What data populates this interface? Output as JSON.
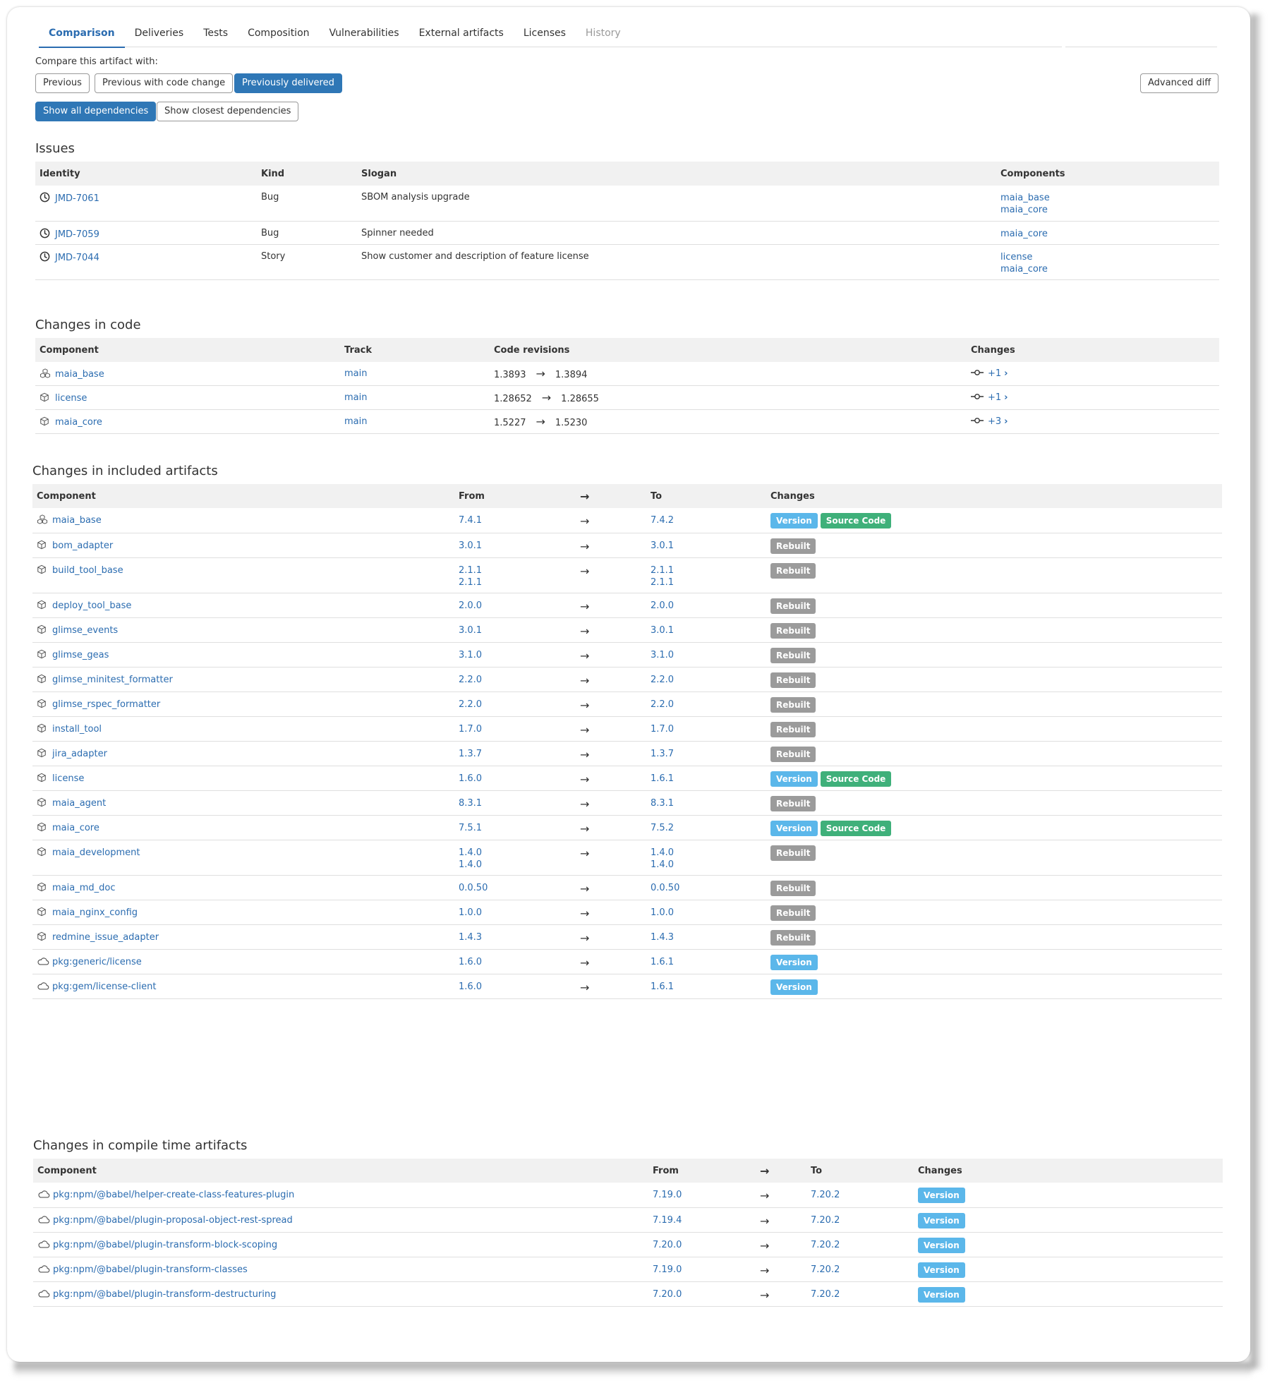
{
  "tabs": [
    {
      "label": "Comparison",
      "active": true
    },
    {
      "label": "Deliveries"
    },
    {
      "label": "Tests"
    },
    {
      "label": "Composition"
    },
    {
      "label": "Vulnerabilities"
    },
    {
      "label": "External artifacts"
    },
    {
      "label": "Licenses"
    },
    {
      "label": "History",
      "disabled": true
    }
  ],
  "compare": {
    "label": "Compare this artifact with:",
    "previous": "Previous",
    "previous_code": "Previous with code change",
    "previously_delivered": "Previously delivered",
    "advanced_diff": "Advanced diff",
    "show_all": "Show all dependencies",
    "show_closest": "Show closest dependencies"
  },
  "issues": {
    "title": "Issues",
    "headers": {
      "identity": "Identity",
      "kind": "Kind",
      "slogan": "Slogan",
      "components": "Components"
    },
    "rows": [
      {
        "id": "JMD-7061",
        "kind": "Bug",
        "slogan": "SBOM analysis upgrade",
        "components": [
          "maia_base",
          "maia_core"
        ]
      },
      {
        "id": "JMD-7059",
        "kind": "Bug",
        "slogan": "Spinner needed",
        "components": [
          "maia_core"
        ]
      },
      {
        "id": "JMD-7044",
        "kind": "Story",
        "slogan": "Show customer and description of feature license",
        "components": [
          "license",
          "maia_core"
        ]
      }
    ]
  },
  "code": {
    "title": "Changes in code",
    "headers": {
      "component": "Component",
      "track": "Track",
      "revisions": "Code revisions",
      "changes": "Changes"
    },
    "rows": [
      {
        "component": "maia_base",
        "icon": "cubes-icon",
        "track": "main",
        "from": "1.3893",
        "to": "1.3894",
        "changes": "+1"
      },
      {
        "component": "license",
        "icon": "cube-icon",
        "track": "main",
        "from": "1.28652",
        "to": "1.28655",
        "changes": "+1"
      },
      {
        "component": "maia_core",
        "icon": "cube-icon",
        "track": "main",
        "from": "1.5227",
        "to": "1.5230",
        "changes": "+3"
      }
    ]
  },
  "included": {
    "title": "Changes in included artifacts",
    "headers": {
      "component": "Component",
      "from": "From",
      "to": "To",
      "changes": "Changes"
    },
    "rows": [
      {
        "component": "maia_base",
        "icon": "cubes-icon",
        "from": [
          "7.4.1"
        ],
        "to": [
          "7.4.2"
        ],
        "badges": [
          "Version",
          "Source Code"
        ]
      },
      {
        "component": "bom_adapter",
        "icon": "cube-icon",
        "from": [
          "3.0.1"
        ],
        "to": [
          "3.0.1"
        ],
        "badges": [
          "Rebuilt"
        ]
      },
      {
        "component": "build_tool_base",
        "icon": "cube-icon",
        "from": [
          "2.1.1",
          "2.1.1"
        ],
        "to": [
          "2.1.1",
          "2.1.1"
        ],
        "badges": [
          "Rebuilt"
        ]
      },
      {
        "component": "deploy_tool_base",
        "icon": "cube-icon",
        "from": [
          "2.0.0"
        ],
        "to": [
          "2.0.0"
        ],
        "badges": [
          "Rebuilt"
        ]
      },
      {
        "component": "glimse_events",
        "icon": "cube-icon",
        "from": [
          "3.0.1"
        ],
        "to": [
          "3.0.1"
        ],
        "badges": [
          "Rebuilt"
        ]
      },
      {
        "component": "glimse_geas",
        "icon": "cube-icon",
        "from": [
          "3.1.0"
        ],
        "to": [
          "3.1.0"
        ],
        "badges": [
          "Rebuilt"
        ]
      },
      {
        "component": "glimse_minitest_formatter",
        "icon": "cube-icon",
        "from": [
          "2.2.0"
        ],
        "to": [
          "2.2.0"
        ],
        "badges": [
          "Rebuilt"
        ]
      },
      {
        "component": "glimse_rspec_formatter",
        "icon": "cube-icon",
        "from": [
          "2.2.0"
        ],
        "to": [
          "2.2.0"
        ],
        "badges": [
          "Rebuilt"
        ]
      },
      {
        "component": "install_tool",
        "icon": "cube-icon",
        "from": [
          "1.7.0"
        ],
        "to": [
          "1.7.0"
        ],
        "badges": [
          "Rebuilt"
        ]
      },
      {
        "component": "jira_adapter",
        "icon": "cube-icon",
        "from": [
          "1.3.7"
        ],
        "to": [
          "1.3.7"
        ],
        "badges": [
          "Rebuilt"
        ]
      },
      {
        "component": "license",
        "icon": "cube-icon",
        "from": [
          "1.6.0"
        ],
        "to": [
          "1.6.1"
        ],
        "badges": [
          "Version",
          "Source Code"
        ]
      },
      {
        "component": "maia_agent",
        "icon": "cube-icon",
        "from": [
          "8.3.1"
        ],
        "to": [
          "8.3.1"
        ],
        "badges": [
          "Rebuilt"
        ]
      },
      {
        "component": "maia_core",
        "icon": "cube-icon",
        "from": [
          "7.5.1"
        ],
        "to": [
          "7.5.2"
        ],
        "badges": [
          "Version",
          "Source Code"
        ]
      },
      {
        "component": "maia_development",
        "icon": "cube-icon",
        "from": [
          "1.4.0",
          "1.4.0"
        ],
        "to": [
          "1.4.0",
          "1.4.0"
        ],
        "badges": [
          "Rebuilt"
        ]
      },
      {
        "component": "maia_md_doc",
        "icon": "cube-icon",
        "from": [
          "0.0.50"
        ],
        "to": [
          "0.0.50"
        ],
        "badges": [
          "Rebuilt"
        ]
      },
      {
        "component": "maia_nginx_config",
        "icon": "cube-icon",
        "from": [
          "1.0.0"
        ],
        "to": [
          "1.0.0"
        ],
        "badges": [
          "Rebuilt"
        ]
      },
      {
        "component": "redmine_issue_adapter",
        "icon": "cube-icon",
        "from": [
          "1.4.3"
        ],
        "to": [
          "1.4.3"
        ],
        "badges": [
          "Rebuilt"
        ]
      },
      {
        "component": "pkg:generic/license",
        "icon": "cloud-icon",
        "from": [
          "1.6.0"
        ],
        "to": [
          "1.6.1"
        ],
        "badges": [
          "Version"
        ]
      },
      {
        "component": "pkg:gem/license-client",
        "icon": "cloud-icon",
        "from": [
          "1.6.0"
        ],
        "to": [
          "1.6.1"
        ],
        "badges": [
          "Version"
        ]
      }
    ]
  },
  "compile": {
    "title": "Changes in compile time artifacts",
    "headers": {
      "component": "Component",
      "from": "From",
      "to": "To",
      "changes": "Changes"
    },
    "rows": [
      {
        "component": "pkg:npm/@babel/helper-create-class-features-plugin",
        "icon": "cloud-icon",
        "from": [
          "7.19.0"
        ],
        "to": [
          "7.20.2"
        ],
        "badges": [
          "Version"
        ]
      },
      {
        "component": "pkg:npm/@babel/plugin-proposal-object-rest-spread",
        "icon": "cloud-icon",
        "from": [
          "7.19.4"
        ],
        "to": [
          "7.20.2"
        ],
        "badges": [
          "Version"
        ]
      },
      {
        "component": "pkg:npm/@babel/plugin-transform-block-scoping",
        "icon": "cloud-icon",
        "from": [
          "7.20.0"
        ],
        "to": [
          "7.20.2"
        ],
        "badges": [
          "Version"
        ]
      },
      {
        "component": "pkg:npm/@babel/plugin-transform-classes",
        "icon": "cloud-icon",
        "from": [
          "7.19.0"
        ],
        "to": [
          "7.20.2"
        ],
        "badges": [
          "Version"
        ]
      },
      {
        "component": "pkg:npm/@babel/plugin-transform-destructuring",
        "icon": "cloud-icon",
        "from": [
          "7.20.0"
        ],
        "to": [
          "7.20.2"
        ],
        "badges": [
          "Version"
        ]
      }
    ]
  },
  "colors": {
    "link": "#2b6cb0",
    "primary": "#2f77b6",
    "version": "#5bb7ea",
    "source": "#3fb07a",
    "rebuilt": "#9b9b9b"
  }
}
